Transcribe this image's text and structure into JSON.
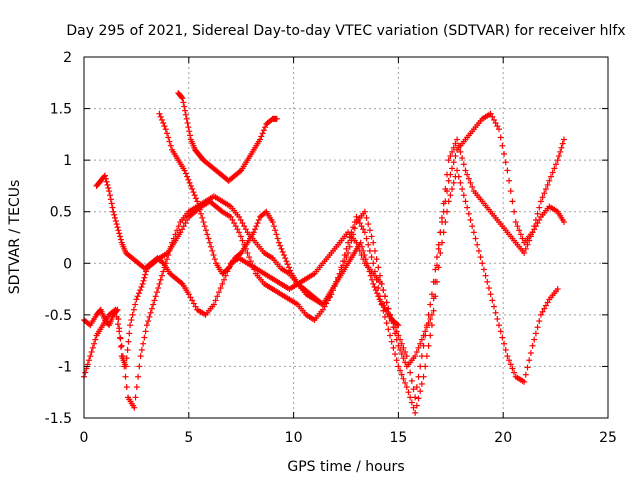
{
  "chart_data": {
    "type": "scatter",
    "title": "Day 295 of 2021, Sidereal Day-to-day VTEC variation (SDTVAR) for receiver hlfx",
    "xlabel": "GPS time / hours",
    "ylabel": "SDTVAR / TECUs",
    "xlim": [
      0,
      25
    ],
    "ylim": [
      -1.5,
      2
    ],
    "xticks": [
      "0",
      "5",
      "10",
      "15",
      "20",
      "25"
    ],
    "yticks": [
      "-1.5",
      "-1",
      "-0.5",
      "0",
      "0.5",
      "1",
      "1.5",
      "2"
    ],
    "xtick_values": [
      0,
      5,
      10,
      15,
      20,
      25
    ],
    "ytick_values": [
      -1.5,
      -1,
      -0.5,
      0,
      0.5,
      1,
      1.5,
      2
    ],
    "grid": true,
    "marker": "+",
    "color": "#ff0000",
    "series": [
      {
        "x": [
          0,
          0.3,
          0.6,
          0.8,
          1.0,
          1.2,
          1.4,
          1.6,
          1.8,
          2.0,
          2.2,
          2.5,
          2.8,
          3.0,
          3.3,
          3.6,
          4.0,
          4.3,
          4.6,
          5.0,
          5.3,
          5.6,
          6.0,
          6.3,
          6.6,
          7.0,
          7.4,
          7.8,
          8.2,
          8.6,
          9.0,
          9.4,
          9.8,
          10.2,
          10.6,
          11.0,
          11.4,
          11.8,
          12.2,
          12.6,
          13.0,
          13.4,
          13.8,
          14.2,
          14.6,
          15.0,
          15.4,
          15.8,
          16.2,
          16.6,
          17.0,
          17.4,
          17.8,
          18.2,
          18.6,
          19.0,
          19.4,
          19.8,
          20.2,
          20.6,
          21.0,
          21.4,
          21.8,
          22.2,
          22.6,
          22.9
        ],
        "y": [
          -0.55,
          -0.6,
          -0.5,
          -0.45,
          -0.55,
          -0.6,
          -0.5,
          -0.45,
          -0.9,
          -1.0,
          -0.6,
          -0.35,
          -0.2,
          -0.05,
          0.0,
          0.05,
          0.1,
          0.2,
          0.3,
          0.45,
          0.5,
          0.55,
          0.6,
          0.55,
          0.5,
          0.45,
          0.3,
          0.1,
          -0.1,
          -0.2,
          -0.25,
          -0.3,
          -0.35,
          -0.4,
          -0.5,
          -0.55,
          -0.45,
          -0.3,
          -0.1,
          0.1,
          0.4,
          0.5,
          0.2,
          -0.2,
          -0.5,
          -0.7,
          -0.9,
          -1.3,
          -0.8,
          -0.3,
          0.3,
          0.8,
          1.1,
          1.2,
          1.3,
          1.4,
          1.45,
          1.3,
          0.9,
          0.4,
          0.2,
          0.3,
          0.45,
          0.55,
          0.5,
          0.4
        ]
      },
      {
        "x": [
          0,
          0.3,
          0.6,
          0.9,
          1.2,
          1.5,
          1.8,
          2.1,
          2.4,
          2.7,
          3.0,
          3.3,
          3.6,
          3.9,
          4.2,
          4.6,
          5.0,
          5.4,
          5.8,
          6.2,
          6.6,
          7.0,
          7.4,
          7.8,
          8.2,
          8.6,
          9.0,
          9.4,
          9.8,
          10.2,
          10.6,
          11.0,
          11.4,
          11.8,
          12.2,
          12.6,
          13.0,
          13.4,
          13.8,
          14.2,
          14.6,
          15.0,
          15.4,
          15.8,
          16.2,
          16.6,
          17.0,
          17.4,
          17.8,
          18.2,
          18.6,
          19.0,
          19.4,
          19.8,
          20.2,
          20.6,
          21.0,
          21.4,
          21.8,
          22.2,
          22.6
        ],
        "y": [
          -1.1,
          -0.9,
          -0.7,
          -0.6,
          -0.5,
          -0.45,
          -0.8,
          -1.3,
          -1.4,
          -0.9,
          -0.6,
          -0.4,
          -0.2,
          0.0,
          0.2,
          0.4,
          0.5,
          0.55,
          0.6,
          0.65,
          0.6,
          0.55,
          0.45,
          0.3,
          0.2,
          0.1,
          0.05,
          -0.05,
          -0.1,
          -0.2,
          -0.3,
          -0.35,
          -0.4,
          -0.3,
          -0.1,
          0.2,
          0.45,
          0.3,
          0.0,
          -0.4,
          -0.7,
          -1.0,
          -1.2,
          -1.45,
          -1.1,
          -0.6,
          0.1,
          0.6,
          0.9,
          0.6,
          0.3,
          0.0,
          -0.3,
          -0.6,
          -0.9,
          -1.1,
          -1.15,
          -0.8,
          -0.5,
          -0.35,
          -0.25
        ]
      },
      {
        "x": [
          0.6,
          0.8,
          1.0,
          1.2,
          1.4,
          1.6,
          1.8,
          2.0,
          2.3,
          2.6,
          2.9,
          3.2,
          3.5,
          3.8,
          4.1,
          4.4,
          4.7,
          5.0,
          5.4,
          5.8,
          6.2,
          6.6,
          7.0,
          7.4,
          7.8,
          8.2,
          8.6,
          9.0,
          9.4,
          9.8,
          10.2,
          10.6,
          11.0,
          11.4,
          11.8,
          12.2,
          12.6,
          13.0,
          13.4,
          13.8,
          14.2,
          14.6,
          15.0,
          15.4,
          15.8,
          16.2,
          16.6,
          17.0,
          17.4,
          17.8,
          18.2,
          18.6,
          19.0,
          19.4,
          19.8,
          20.2,
          20.6,
          21.0,
          21.4,
          21.8,
          22.2,
          22.6,
          22.9
        ],
        "y": [
          0.75,
          0.8,
          0.85,
          0.7,
          0.5,
          0.35,
          0.2,
          0.1,
          0.05,
          0.0,
          -0.05,
          0.0,
          0.05,
          0.0,
          -0.1,
          -0.15,
          -0.2,
          -0.3,
          -0.45,
          -0.5,
          -0.4,
          -0.2,
          0.0,
          0.05,
          0.0,
          -0.05,
          -0.1,
          -0.15,
          -0.2,
          -0.25,
          -0.2,
          -0.15,
          -0.1,
          0.0,
          0.1,
          0.2,
          0.3,
          0.2,
          0.0,
          -0.1,
          -0.2,
          -0.5,
          -0.8,
          -1.0,
          -0.9,
          -0.7,
          -0.5,
          0.3,
          1.0,
          1.2,
          0.9,
          0.7,
          0.6,
          0.5,
          0.4,
          0.3,
          0.2,
          0.1,
          0.3,
          0.6,
          0.8,
          1.0,
          1.2
        ]
      },
      {
        "x": [
          3.6,
          3.9,
          4.2,
          4.5,
          4.8,
          5.1,
          5.4,
          5.7,
          6.0,
          6.3,
          6.6,
          6.9,
          7.2,
          7.5,
          7.8,
          8.1,
          8.4,
          8.7,
          9.0,
          9.3,
          9.6,
          9.9,
          10.2,
          10.5,
          10.8,
          11.1,
          11.4,
          11.7,
          12.0,
          12.3,
          12.6,
          12.9,
          13.2,
          13.5,
          13.8,
          14.1,
          14.4,
          14.7,
          15.0
        ],
        "y": [
          1.45,
          1.3,
          1.1,
          1.0,
          0.9,
          0.75,
          0.6,
          0.4,
          0.2,
          0.0,
          -0.1,
          -0.05,
          0.05,
          0.1,
          0.2,
          0.3,
          0.45,
          0.5,
          0.4,
          0.2,
          0.05,
          -0.1,
          -0.2,
          -0.25,
          -0.3,
          -0.35,
          -0.4,
          -0.3,
          -0.2,
          -0.1,
          0.0,
          0.1,
          0.2,
          0.0,
          -0.2,
          -0.35,
          -0.45,
          -0.55,
          -0.6
        ]
      },
      {
        "x": [
          4.5,
          4.7,
          4.9,
          5.1,
          5.3,
          5.5,
          5.7,
          6.0,
          6.3,
          6.6,
          6.9,
          7.2,
          7.5,
          7.8,
          8.1,
          8.4,
          8.7,
          9.0,
          9.2
        ],
        "y": [
          1.65,
          1.6,
          1.4,
          1.2,
          1.1,
          1.05,
          1.0,
          0.95,
          0.9,
          0.85,
          0.8,
          0.85,
          0.9,
          1.0,
          1.1,
          1.2,
          1.35,
          1.4,
          1.4
        ]
      }
    ]
  }
}
